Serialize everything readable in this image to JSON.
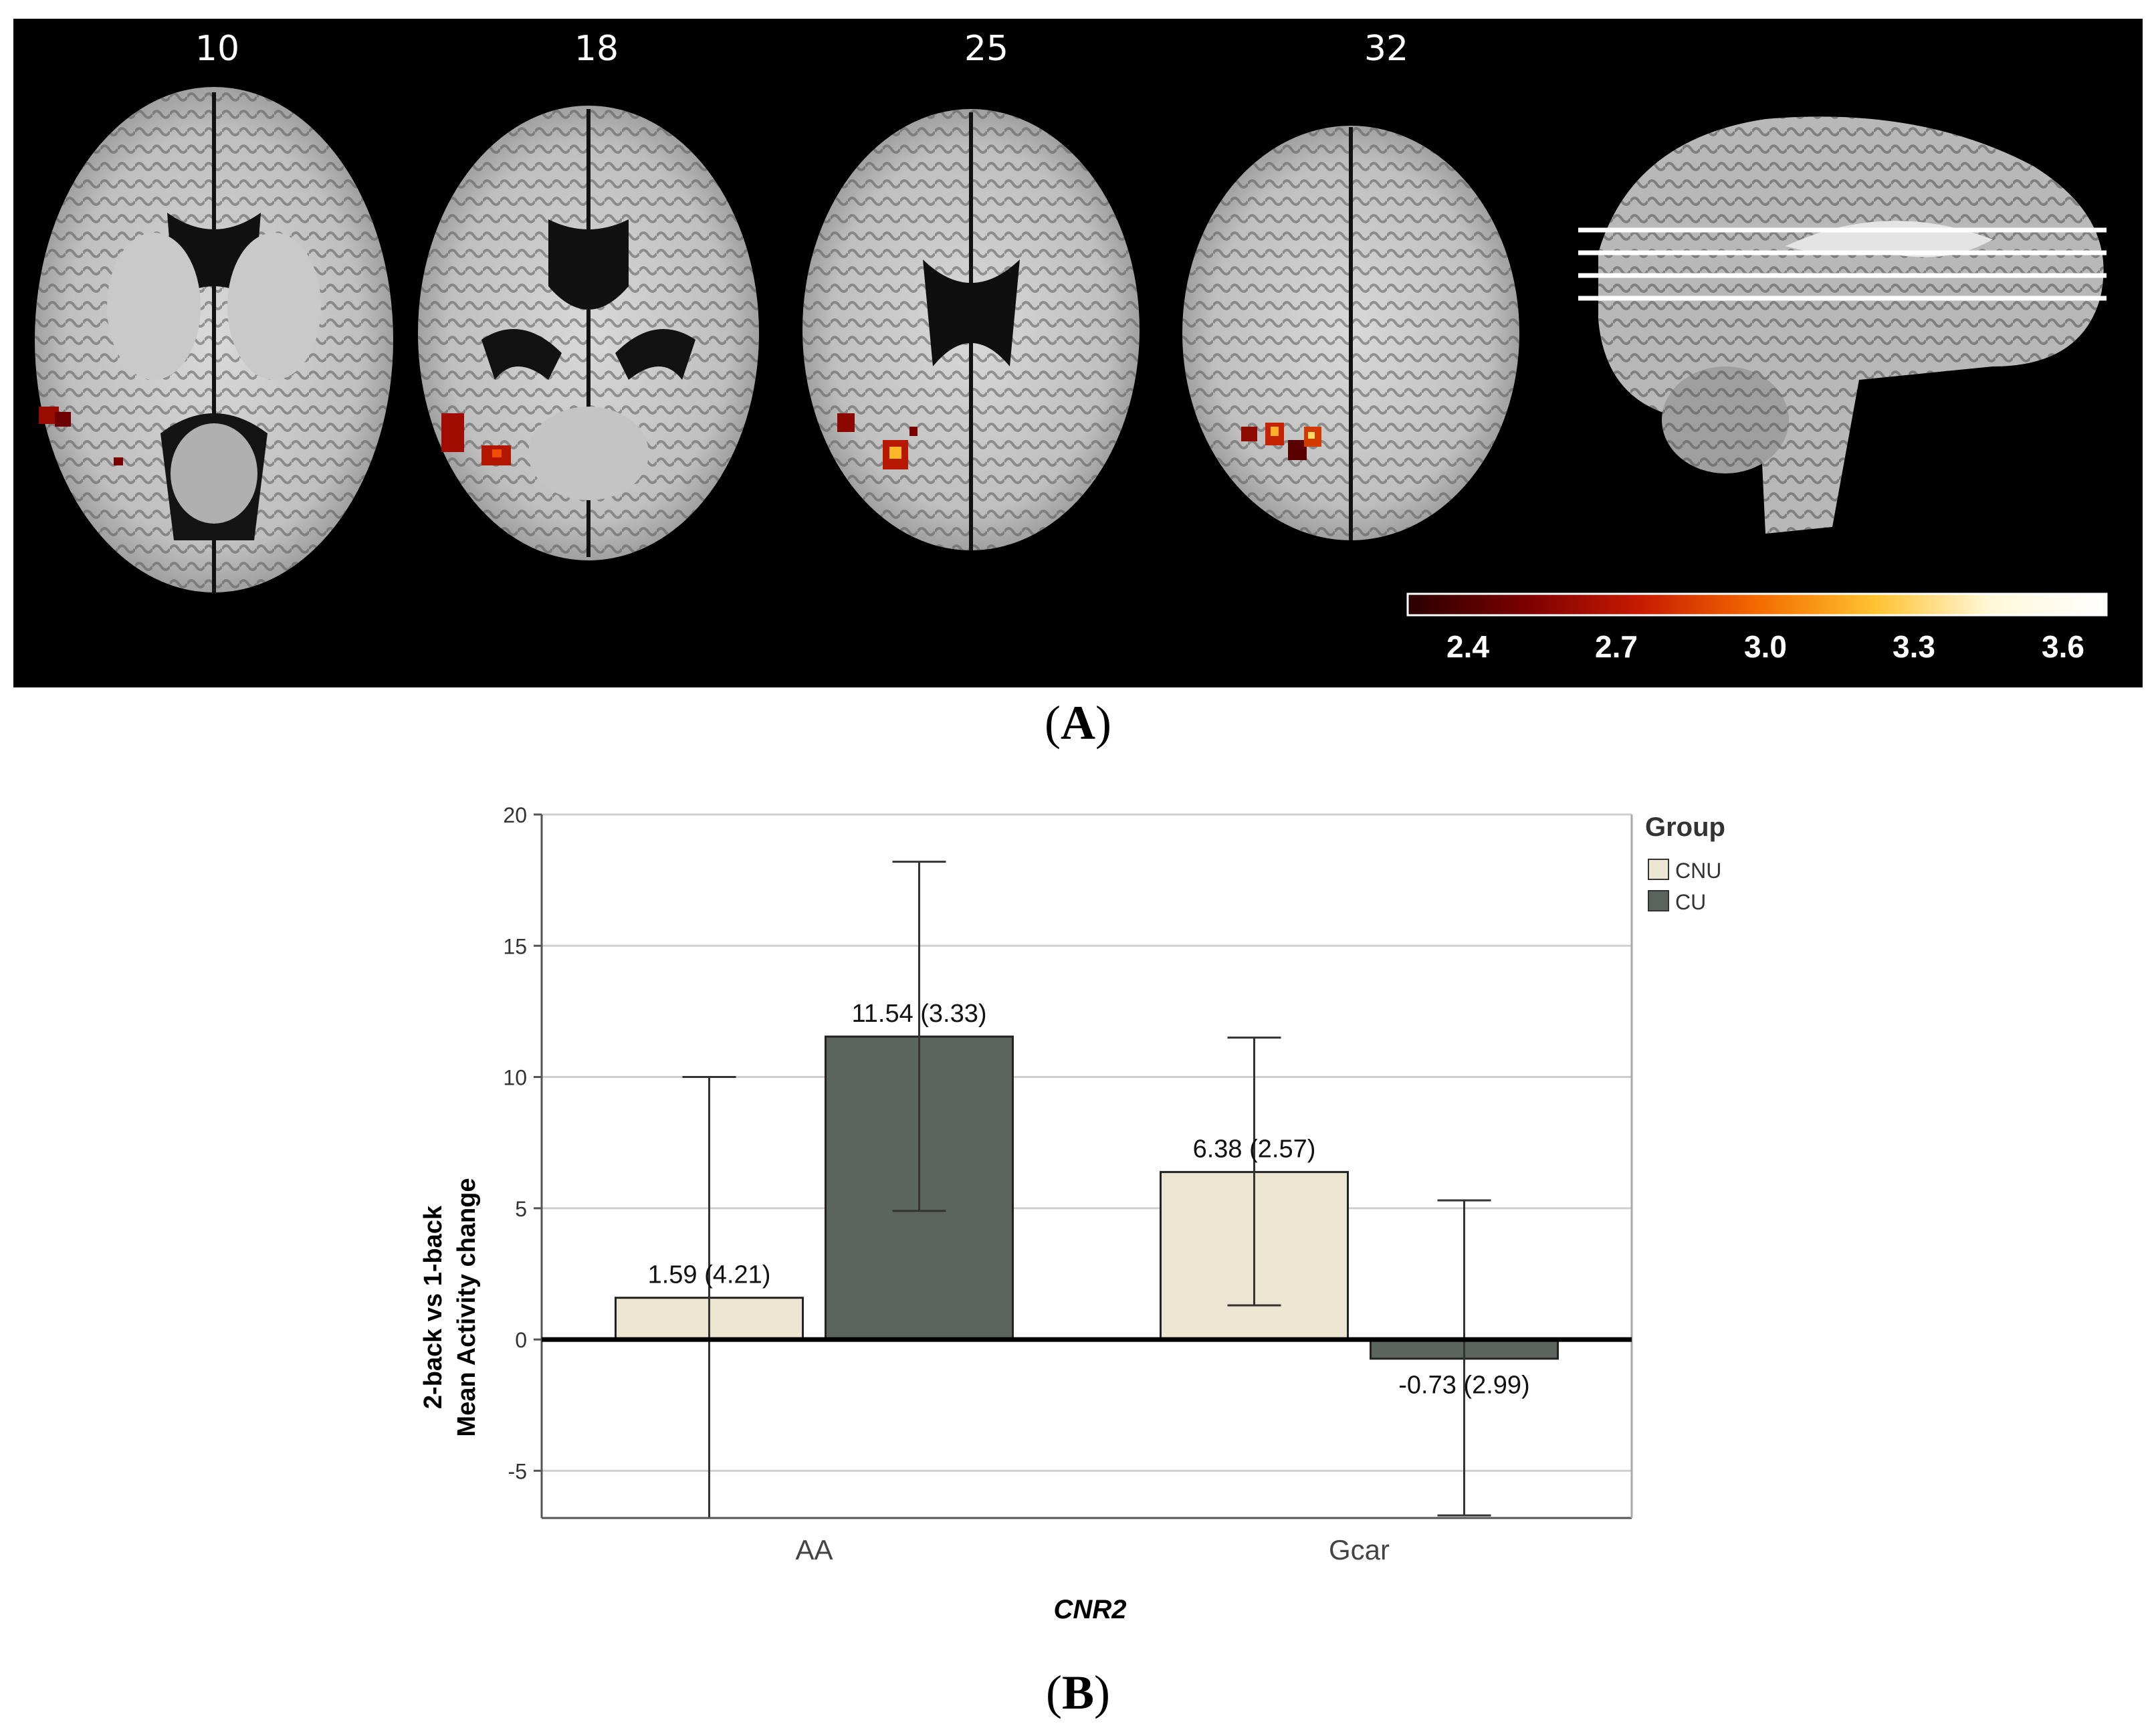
{
  "panel_a": {
    "label": "A",
    "slice_numbers": [
      "10",
      "18",
      "25",
      "32"
    ],
    "colorbar_ticks": [
      "2.4",
      "2.7",
      "3.0",
      "3.3",
      "3.6"
    ],
    "colormap": [
      "#2a0000",
      "#7a0000",
      "#c81a00",
      "#f26a00",
      "#ffc230",
      "#fff8d8",
      "#ffffff"
    ]
  },
  "panel_b": {
    "label": "B"
  },
  "chart_data": {
    "type": "bar",
    "categories": [
      "AA",
      "Gcar"
    ],
    "xlabel": "CNR2",
    "ylabel_lines": [
      "2-back vs 1-back",
      "Mean Activity change"
    ],
    "ylim": [
      -6.8,
      20
    ],
    "yticks": [
      -5,
      0,
      5,
      10,
      15,
      20
    ],
    "grid": true,
    "legend": {
      "title": "Group",
      "position": "top-right"
    },
    "series": [
      {
        "name": "CNU",
        "color": "#ebe5d1",
        "values": [
          1.59,
          6.38
        ],
        "error_low": [
          -6.8,
          1.3
        ],
        "error_high": [
          10.0,
          11.5
        ],
        "labels": [
          "1.59 (4.21)",
          "6.38 (2.57)"
        ]
      },
      {
        "name": "CU",
        "color": "#5b645f",
        "values": [
          11.54,
          -0.73
        ],
        "error_low": [
          4.9,
          -6.7
        ],
        "error_high": [
          18.2,
          5.3
        ],
        "labels": [
          "11.54 (3.33)",
          "-0.73 (2.99)"
        ]
      }
    ]
  }
}
